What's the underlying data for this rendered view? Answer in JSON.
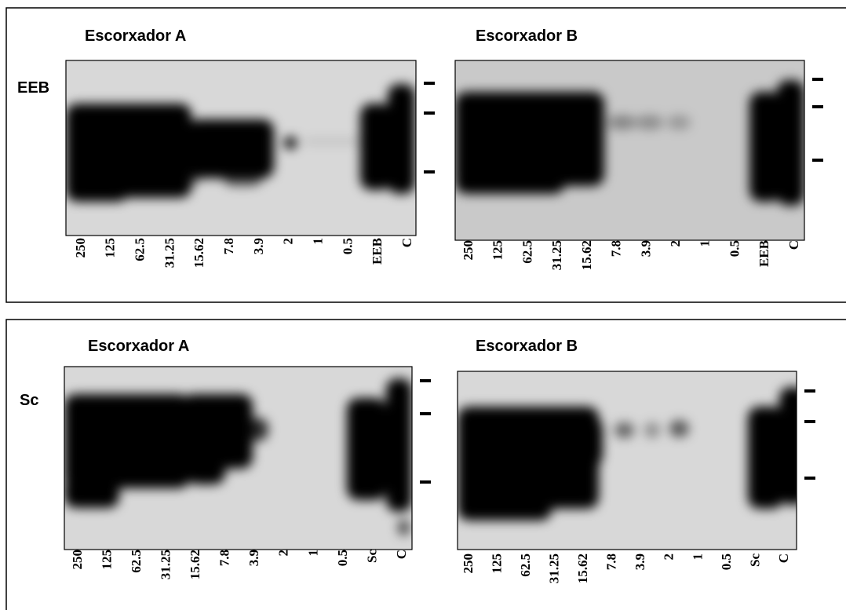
{
  "panels": [
    {
      "label": "EEB",
      "blots": [
        {
          "title": "Escorxador A",
          "lanes": [
            "250",
            "125",
            "62.5",
            "31.25",
            "15.62",
            "7.8",
            "3.9",
            "2",
            "1",
            "0.5",
            "EEB",
            "C"
          ]
        },
        {
          "title": "Escorxador B",
          "lanes": [
            "250",
            "125",
            "62.5",
            "31.25",
            "15.62",
            "7.8",
            "3.9",
            "2",
            "1",
            "0.5",
            "EEB",
            "C"
          ]
        }
      ]
    },
    {
      "label": "Sc",
      "blots": [
        {
          "title": "Escorxador A",
          "lanes": [
            "250",
            "125",
            "62.5",
            "31.25",
            "15.62",
            "7.8",
            "3.9",
            "2",
            "1",
            "0.5",
            "Sc",
            "C"
          ]
        },
        {
          "title": "Escorxador B",
          "lanes": [
            "250",
            "125",
            "62.5",
            "31.25",
            "15.62",
            "7.8",
            "3.9",
            "2",
            "1",
            "0.5",
            "Sc",
            "C"
          ]
        }
      ]
    }
  ]
}
